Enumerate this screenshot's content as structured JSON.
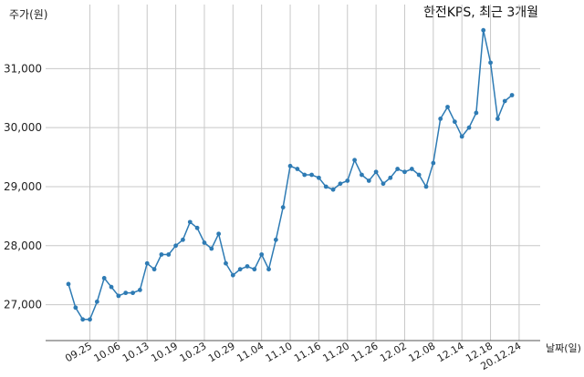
{
  "chart_data": {
    "type": "line",
    "title": "한전KPS, 최근 3개월",
    "ylabel": "주가(원)",
    "xlabel": "날짜(일)",
    "ylim": [
      26500,
      31900
    ],
    "yticks": [
      27000,
      28000,
      29000,
      30000,
      31000
    ],
    "ytick_labels": [
      "27,000",
      "28,000",
      "29,000",
      "30,000",
      "31,000"
    ],
    "grid": true,
    "color": "#2e7bb4",
    "x_ticks": [
      {
        "label": "09.25",
        "index": 3
      },
      {
        "label": "10.06",
        "index": 7
      },
      {
        "label": "10.13",
        "index": 11
      },
      {
        "label": "10.19",
        "index": 15
      },
      {
        "label": "10.23",
        "index": 19
      },
      {
        "label": "10.29",
        "index": 23
      },
      {
        "label": "11.04",
        "index": 27
      },
      {
        "label": "11.10",
        "index": 31
      },
      {
        "label": "11.16",
        "index": 35
      },
      {
        "label": "11.20",
        "index": 39
      },
      {
        "label": "11.26",
        "index": 43
      },
      {
        "label": "12.02",
        "index": 47
      },
      {
        "label": "12.08",
        "index": 51
      },
      {
        "label": "12.14",
        "index": 55
      },
      {
        "label": "12.18",
        "index": 59
      },
      {
        "label": "20.12.24",
        "index": 63
      }
    ],
    "values": [
      27350,
      26950,
      26750,
      26750,
      27050,
      27450,
      27300,
      27150,
      27200,
      27200,
      27250,
      27700,
      27600,
      27850,
      27850,
      28000,
      28100,
      28400,
      28300,
      28050,
      27950,
      28200,
      27700,
      27500,
      27600,
      27650,
      27600,
      27850,
      27600,
      28100,
      28650,
      29350,
      29300,
      29200,
      29200,
      29150,
      29000,
      28950,
      29050,
      29100,
      29450,
      29200,
      29100,
      29250,
      29050,
      29150,
      29300,
      29250,
      29300,
      29200,
      29000,
      29400,
      30150,
      30350,
      30100,
      29850,
      30000,
      30250,
      31650,
      31100,
      30150,
      30450,
      30550
    ]
  }
}
